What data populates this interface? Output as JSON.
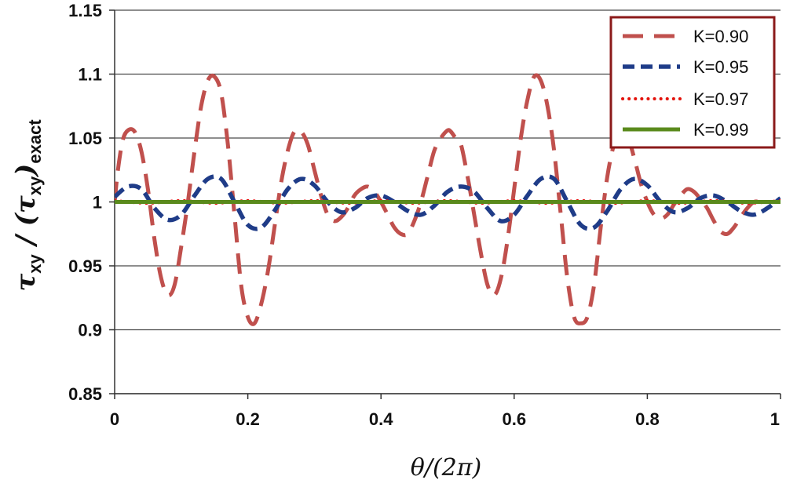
{
  "chart_data": {
    "type": "line",
    "title": "",
    "xlabel": "θ/(2π)",
    "ylabel": {
      "sym1": "τ",
      "sub1": "xy",
      "sep": " / (",
      "sym2": "τ",
      "sub2": "xy",
      "close": ")",
      "sub3": "exact"
    },
    "xlim": [
      0,
      1
    ],
    "ylim": [
      0.85,
      1.15
    ],
    "xticks": [
      {
        "v": 0,
        "label": "0"
      },
      {
        "v": 0.2,
        "label": "0.2"
      },
      {
        "v": 0.4,
        "label": "0.4"
      },
      {
        "v": 0.6,
        "label": "0.6"
      },
      {
        "v": 0.8,
        "label": "0.8"
      },
      {
        "v": 1,
        "label": "1"
      }
    ],
    "yticks": [
      {
        "v": 0.85,
        "label": "0.85"
      },
      {
        "v": 0.9,
        "label": "0.9"
      },
      {
        "v": 0.95,
        "label": "0.95"
      },
      {
        "v": 1.0,
        "label": "1"
      },
      {
        "v": 1.05,
        "label": "1.05"
      },
      {
        "v": 1.1,
        "label": "1.1"
      },
      {
        "v": 1.15,
        "label": "1.15"
      }
    ],
    "grid": "horizontal",
    "legend_position": "top-right",
    "series": [
      {
        "name": "K=0.90",
        "color": "#c0504d",
        "style": "dashed",
        "x": [
          0,
          0.005,
          0.012,
          0.02,
          0.03,
          0.04,
          0.05,
          0.06,
          0.07,
          0.08,
          0.09,
          0.1,
          0.11,
          0.12,
          0.13,
          0.14,
          0.15,
          0.16,
          0.17,
          0.18,
          0.19,
          0.2,
          0.21,
          0.22,
          0.23,
          0.24,
          0.25,
          0.26,
          0.27,
          0.28,
          0.29,
          0.3,
          0.31,
          0.32,
          0.33,
          0.34,
          0.35,
          0.36,
          0.37,
          0.38,
          0.39,
          0.4,
          0.41,
          0.42,
          0.43,
          0.44,
          0.45,
          0.46,
          0.47,
          0.48,
          0.49,
          0.5,
          0.505,
          0.512,
          0.52,
          0.53,
          0.54,
          0.55,
          0.56,
          0.57,
          0.58,
          0.59,
          0.6,
          0.61,
          0.62,
          0.63,
          0.64,
          0.65,
          0.66,
          0.67,
          0.68,
          0.69,
          0.7,
          0.71,
          0.72,
          0.73,
          0.74,
          0.75,
          0.76,
          0.77,
          0.78,
          0.79,
          0.8,
          0.81,
          0.82,
          0.83,
          0.84,
          0.85,
          0.86,
          0.87,
          0.88,
          0.89,
          0.9,
          0.91,
          0.92,
          0.93,
          0.94,
          0.95,
          0.96,
          0.97,
          0.98,
          0.99,
          1.0
        ],
        "y": [
          1.0,
          1.025,
          1.048,
          1.056,
          1.055,
          1.04,
          1.01,
          0.97,
          0.94,
          0.927,
          0.935,
          0.965,
          1.0,
          1.04,
          1.075,
          1.095,
          1.098,
          1.085,
          1.045,
          0.99,
          0.935,
          0.91,
          0.905,
          0.92,
          0.945,
          0.98,
          1.015,
          1.04,
          1.055,
          1.055,
          1.045,
          1.025,
          1.005,
          0.99,
          0.985,
          0.988,
          0.995,
          1.005,
          1.01,
          1.012,
          1.008,
          1.0,
          0.99,
          0.98,
          0.975,
          0.975,
          0.985,
          1.0,
          1.02,
          1.04,
          1.05,
          1.056,
          1.055,
          1.05,
          1.045,
          1.02,
          0.99,
          0.96,
          0.935,
          0.927,
          0.94,
          0.97,
          1.01,
          1.05,
          1.08,
          1.098,
          1.095,
          1.075,
          1.04,
          0.99,
          0.94,
          0.91,
          0.905,
          0.91,
          0.935,
          0.98,
          1.02,
          1.045,
          1.055,
          1.052,
          1.035,
          1.015,
          1.0,
          0.99,
          0.987,
          0.99,
          0.998,
          1.005,
          1.01,
          1.008,
          1.002,
          0.995,
          0.985,
          0.977,
          0.975,
          0.98,
          0.988,
          0.995,
          1.0,
          1.0,
          1.0,
          1.0,
          1.0
        ]
      },
      {
        "name": "K=0.95",
        "color": "#1f3c88",
        "style": "dashed",
        "x": [
          0,
          0.02,
          0.04,
          0.06,
          0.08,
          0.1,
          0.12,
          0.14,
          0.16,
          0.18,
          0.2,
          0.22,
          0.24,
          0.26,
          0.28,
          0.3,
          0.32,
          0.34,
          0.36,
          0.38,
          0.4,
          0.42,
          0.44,
          0.46,
          0.48,
          0.5,
          0.52,
          0.54,
          0.56,
          0.58,
          0.6,
          0.62,
          0.64,
          0.66,
          0.68,
          0.7,
          0.72,
          0.74,
          0.76,
          0.78,
          0.8,
          0.82,
          0.84,
          0.86,
          0.88,
          0.9,
          0.92,
          0.94,
          0.96,
          0.98,
          1.0
        ],
        "y": [
          1.004,
          1.012,
          1.01,
          0.995,
          0.986,
          0.99,
          1.005,
          1.018,
          1.018,
          1.0,
          0.982,
          0.98,
          0.993,
          1.01,
          1.018,
          1.013,
          1.0,
          0.992,
          0.995,
          1.003,
          1.005,
          1.0,
          0.993,
          0.99,
          0.997,
          1.008,
          1.012,
          1.008,
          0.995,
          0.985,
          0.99,
          1.005,
          1.018,
          1.018,
          1.0,
          0.982,
          0.98,
          0.993,
          1.01,
          1.018,
          1.013,
          1.0,
          0.992,
          0.995,
          1.003,
          1.005,
          1.0,
          0.993,
          0.99,
          0.995,
          1.003
        ]
      },
      {
        "name": "K=0.97",
        "color": "#e3120b",
        "style": "dotted",
        "x": [
          0,
          0.05,
          0.1,
          0.15,
          0.2,
          0.25,
          0.3,
          0.35,
          0.4,
          0.45,
          0.5,
          0.55,
          0.6,
          0.65,
          0.7,
          0.75,
          0.8,
          0.85,
          0.9,
          0.95,
          1.0
        ],
        "y": [
          1.001,
          0.999,
          1.001,
          0.999,
          1.001,
          0.999,
          1.001,
          0.999,
          1.001,
          0.999,
          1.001,
          0.999,
          1.001,
          0.999,
          1.001,
          0.999,
          1.001,
          0.999,
          1.001,
          0.999,
          1.001
        ]
      },
      {
        "name": "K=0.99",
        "color": "#5a8a1c",
        "style": "solid",
        "x": [
          0,
          1
        ],
        "y": [
          1.0,
          1.0
        ]
      }
    ]
  }
}
